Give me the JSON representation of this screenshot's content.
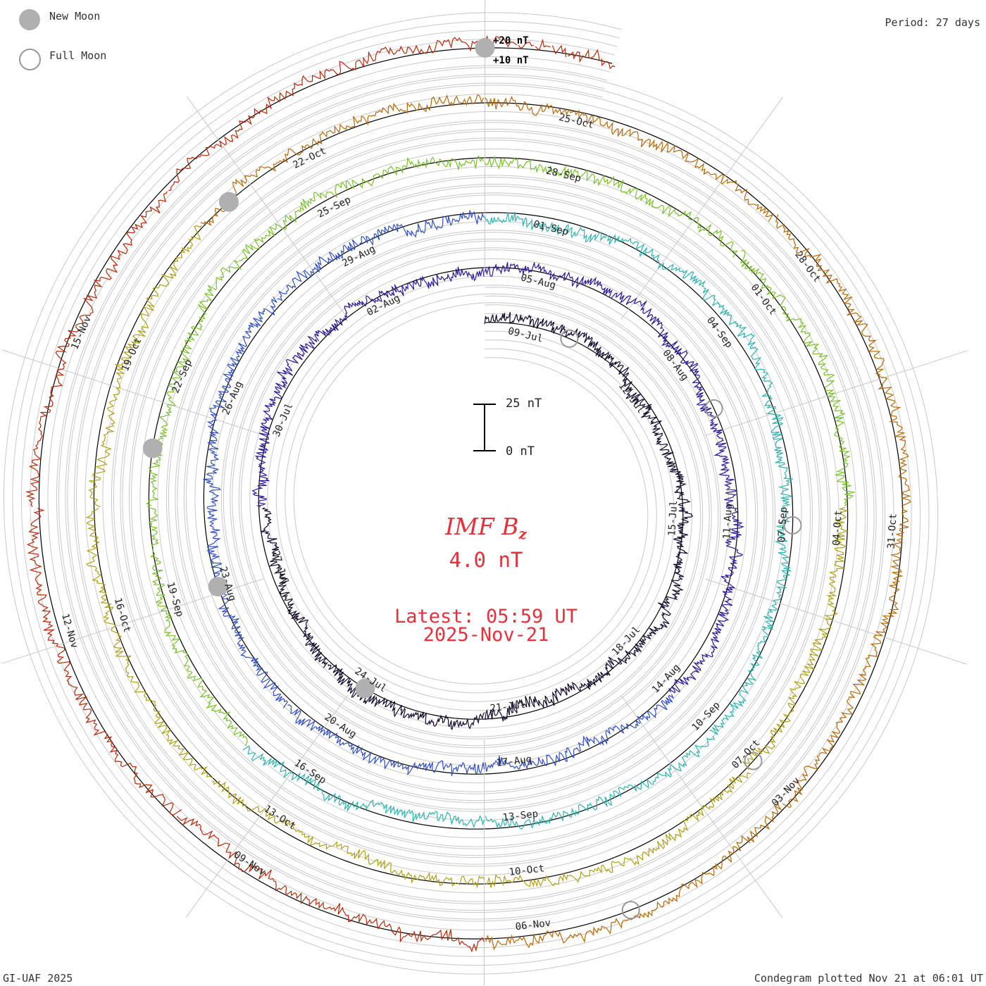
{
  "period_label": "Period: 27 days",
  "legend": {
    "new_moon": "New Moon",
    "full_moon": "Full Moon"
  },
  "footer": {
    "left": "GI-UAF 2025",
    "right": "Condegram plotted Nov 21 at 06:01 UT"
  },
  "center": {
    "quantity": "IMF B",
    "subscript": "z",
    "value": "4.0 nT",
    "latest": "Latest: 05:59 UT",
    "latest_date": "2025-Nov-21"
  },
  "scale_bar": {
    "top_label": "25 nT",
    "bottom_label": "0 nT",
    "span_nT": 25
  },
  "ring_labels": {
    "plus20": "+20 nT",
    "plus10": "+10 nT"
  },
  "colors": {
    "grid": "#c8c8c8",
    "zero_ring": "#000000",
    "title": "#e8303a",
    "moon_new": "#b0b0b0",
    "moon_full": "#9a9a9a",
    "rotations": [
      "#150a2e",
      "#2a1a9a",
      "#2f4fc6",
      "#2fb4b0",
      "#7ac22e",
      "#b0a018",
      "#b86808",
      "#b82808"
    ]
  },
  "chart_data": {
    "type": "condegram-spiral",
    "period_days": 27,
    "start_date": "2025-Jul-08",
    "end_date": "2025-Nov-21",
    "quantity": "IMF Bz",
    "units": "nT",
    "rotations": [
      {
        "index": 1,
        "color": "#150a2e",
        "labels": [
          "09-Jul",
          "12-Jul",
          "15-Jul",
          "18-Jul",
          "21-Jul",
          "24-Jul",
          "27-Jul",
          "30-Jul"
        ]
      },
      {
        "index": 2,
        "color": "#2a1a9a",
        "labels": [
          "02-Aug",
          "05-Aug",
          "08-Aug",
          "11-Aug",
          "14-Aug",
          "17-Aug",
          "20-Aug",
          "23-Aug",
          "26-Aug",
          "29-Aug"
        ]
      },
      {
        "index": 3,
        "color": "#2fb4b0",
        "labels": [
          "01-Sep",
          "04-Sep",
          "07-Sep",
          "10-Sep",
          "13-Sep",
          "16-Sep",
          "19-Sep",
          "22-Sep",
          "25-Sep",
          "28-Sep"
        ]
      },
      {
        "index": 4,
        "color": "#7ac22e",
        "labels": [
          "01-Oct",
          "04-Oct",
          "07-Oct",
          "10-Oct",
          "13-Oct",
          "16-Oct",
          "19-Oct",
          "22-Oct",
          "25-Oct",
          "28-Oct",
          "31-Oct"
        ]
      },
      {
        "index": 5,
        "color": "#b86808",
        "labels": [
          "03-Nov",
          "06-Nov",
          "09-Nov",
          "12-Nov",
          "15-Nov"
        ]
      }
    ],
    "new_moons": [
      "2025-Jul-24",
      "2025-Aug-23",
      "2025-Sep-21",
      "2025-Oct-21",
      "2025-Nov-20"
    ],
    "full_moons": [
      "2025-Jul-10",
      "2025-Aug-09",
      "2025-Sep-07",
      "2025-Oct-07",
      "2025-Nov-05"
    ],
    "latest_value_nT": 4.0,
    "grid": true
  }
}
